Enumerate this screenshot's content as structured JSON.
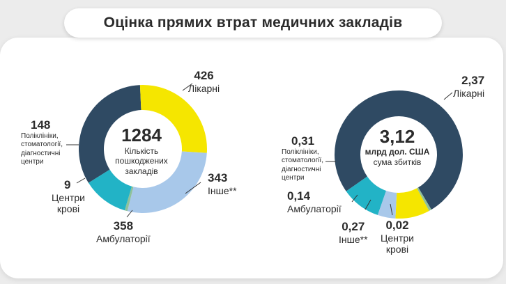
{
  "title": "Оцінка прямих втрат медичних закладів",
  "colors": {
    "hospitals": "#2f4a63",
    "other": "#f5e600",
    "ambulatory": "#a8c8ea",
    "blood": "#8fc19a",
    "polyclinics": "#22b3c6"
  },
  "chart_data": [
    {
      "type": "pie",
      "donut": true,
      "center": {
        "value": "1284",
        "label_lines": [
          "Кількість",
          "пошкоджених",
          "закладів"
        ]
      },
      "slices": [
        {
          "key": "hospitals",
          "value": 426,
          "label": "426",
          "name": "Лікарні"
        },
        {
          "key": "other",
          "value": 343,
          "label": "343",
          "name": "Інше**"
        },
        {
          "key": "ambulatory",
          "value": 358,
          "label": "358",
          "name": "Амбулаторії"
        },
        {
          "key": "blood",
          "value": 9,
          "label": "9",
          "name_lines": [
            "Центри",
            "крові"
          ]
        },
        {
          "key": "polyclinics",
          "value": 148,
          "label": "148",
          "name_lines": [
            "Поліклініки,",
            "стоматології,",
            "діагностичні",
            "центри"
          ]
        }
      ]
    },
    {
      "type": "pie",
      "donut": true,
      "center": {
        "value": "3,12",
        "bold_line": "млрд дол. США",
        "label": "сума збитків"
      },
      "slices": [
        {
          "key": "hospitals",
          "value": 2.37,
          "label": "2,37",
          "name": "Лікарні"
        },
        {
          "key": "blood",
          "value": 0.02,
          "label": "0,02",
          "name_lines": [
            "Центри",
            "крові"
          ]
        },
        {
          "key": "other",
          "value": 0.27,
          "label": "0,27",
          "name": "Інше**"
        },
        {
          "key": "ambulatory",
          "value": 0.14,
          "label": "0,14",
          "name": "Амбулаторії"
        },
        {
          "key": "polyclinics",
          "value": 0.31,
          "label": "0,31",
          "name_lines": [
            "Поліклініки,",
            "стоматології,",
            "діагностичні",
            "центри"
          ]
        }
      ]
    }
  ]
}
